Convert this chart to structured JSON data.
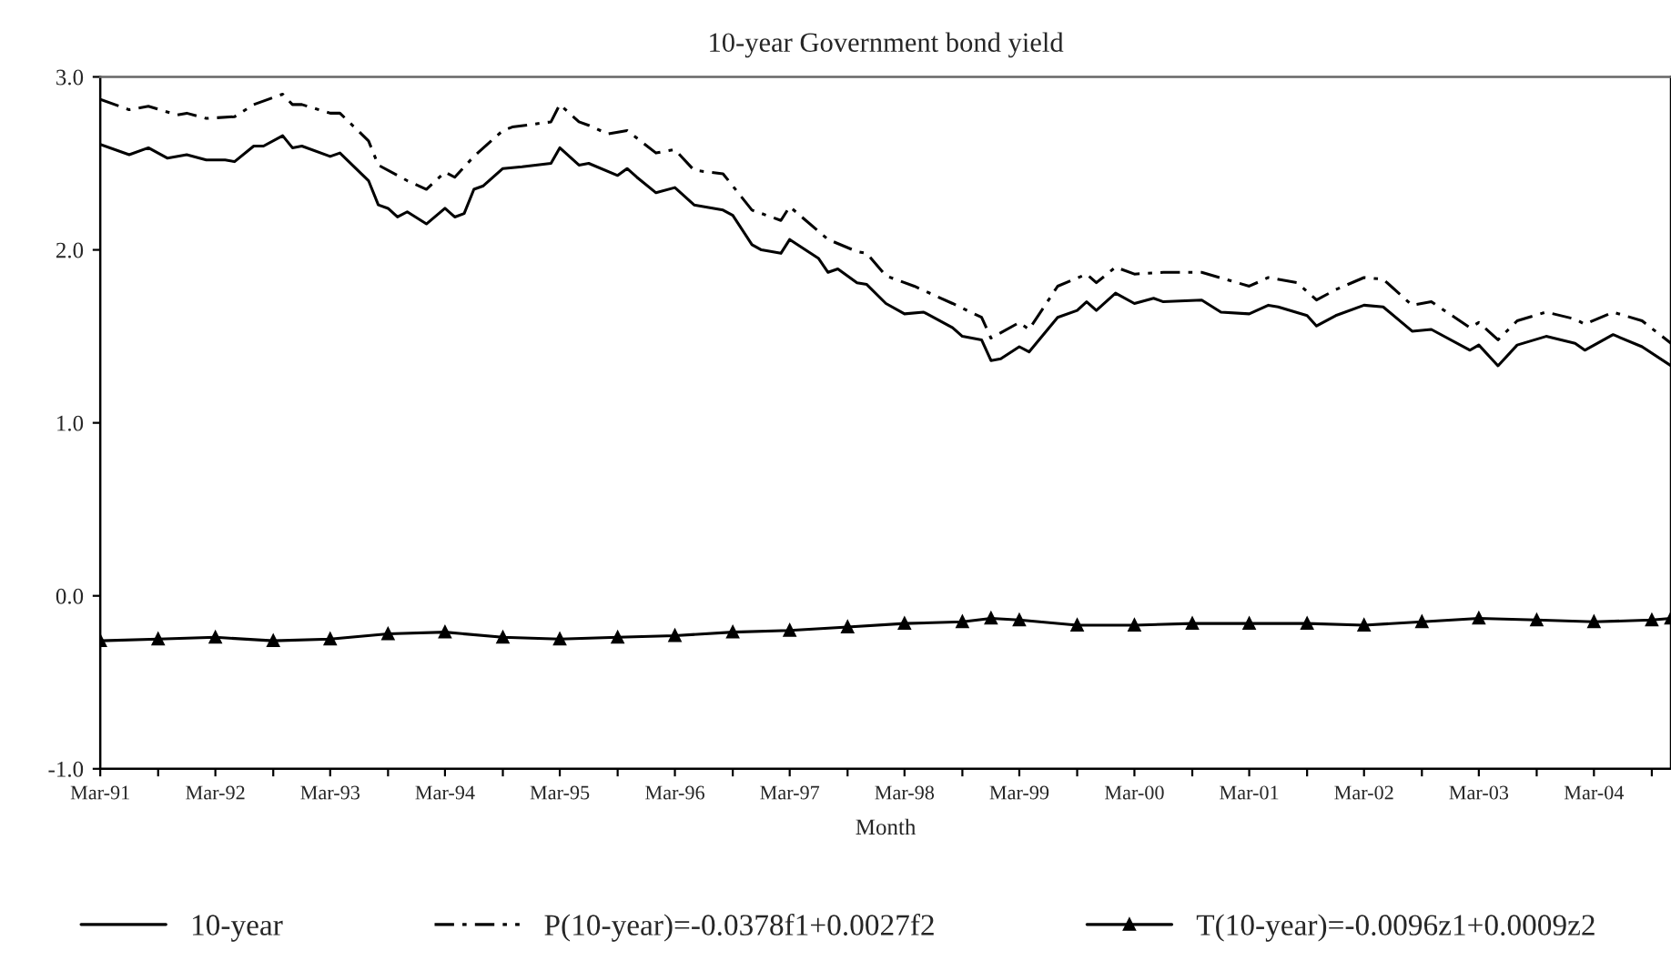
{
  "chart_data": {
    "type": "line",
    "title": "10-year Government bond yield",
    "xlabel": "Month",
    "xlim": [
      "1991-03",
      "2004-11"
    ],
    "ylim": [
      -1.0,
      3.0
    ],
    "yticks": [
      {
        "value": -1.0,
        "label": "-1.0"
      },
      {
        "value": 0.0,
        "label": "0.0"
      },
      {
        "value": 1.0,
        "label": "1.0"
      },
      {
        "value": 2.0,
        "label": "2.0"
      },
      {
        "value": 3.0,
        "label": "3.0"
      }
    ],
    "xticks": [
      {
        "value": "1991-03",
        "label": "Mar-91"
      },
      {
        "value": "1991-09",
        "label": null
      },
      {
        "value": "1992-03",
        "label": "Mar-92"
      },
      {
        "value": "1992-09",
        "label": null
      },
      {
        "value": "1993-03",
        "label": "Mar-93"
      },
      {
        "value": "1993-09",
        "label": null
      },
      {
        "value": "1994-03",
        "label": "Mar-94"
      },
      {
        "value": "1994-09",
        "label": null
      },
      {
        "value": "1995-03",
        "label": "Mar-95"
      },
      {
        "value": "1995-09",
        "label": null
      },
      {
        "value": "1996-03",
        "label": "Mar-96"
      },
      {
        "value": "1996-09",
        "label": null
      },
      {
        "value": "1997-03",
        "label": "Mar-97"
      },
      {
        "value": "1997-09",
        "label": null
      },
      {
        "value": "1998-03",
        "label": "Mar-98"
      },
      {
        "value": "1998-09",
        "label": null
      },
      {
        "value": "1999-03",
        "label": "Mar-99"
      },
      {
        "value": "1999-09",
        "label": null
      },
      {
        "value": "2000-03",
        "label": "Mar-00"
      },
      {
        "value": "2000-09",
        "label": null
      },
      {
        "value": "2001-03",
        "label": "Mar-01"
      },
      {
        "value": "2001-09",
        "label": null
      },
      {
        "value": "2002-03",
        "label": "Mar-02"
      },
      {
        "value": "2002-09",
        "label": null
      },
      {
        "value": "2003-03",
        "label": "Mar-03"
      },
      {
        "value": "2003-09",
        "label": null
      },
      {
        "value": "2004-03",
        "label": "Mar-04"
      },
      {
        "value": "2004-09",
        "label": null
      }
    ],
    "grid": false,
    "legend": "bottom",
    "series": [
      {
        "name": "10-year",
        "color": "#000000",
        "line_style": "solid",
        "marker": "none",
        "x": [
          "1991-03",
          "1991-06",
          "1991-08",
          "1991-10",
          "1991-12",
          "1992-02",
          "1992-04",
          "1992-05",
          "1992-07",
          "1992-08",
          "1992-10",
          "1992-11",
          "1992-12",
          "1993-03",
          "1993-04",
          "1993-07",
          "1993-08",
          "1993-09",
          "1993-10",
          "1993-11",
          "1994-01",
          "1994-03",
          "1994-04",
          "1994-05",
          "1994-06",
          "1994-07",
          "1994-09",
          "1994-11",
          "1995-02",
          "1995-03",
          "1995-05",
          "1995-06",
          "1995-09",
          "1995-10",
          "1995-11",
          "1996-01",
          "1996-03",
          "1996-05",
          "1996-08",
          "1996-09",
          "1996-11",
          "1996-12",
          "1997-02",
          "1997-03",
          "1997-06",
          "1997-07",
          "1997-08",
          "1997-10",
          "1997-11",
          "1998-01",
          "1998-03",
          "1998-05",
          "1998-08",
          "1998-09",
          "1998-11",
          "1998-12",
          "1999-01",
          "1999-03",
          "1999-04",
          "1999-07",
          "1999-09",
          "1999-10",
          "1999-11",
          "2000-01",
          "2000-03",
          "2000-05",
          "2000-06",
          "2000-10",
          "2000-12",
          "2001-03",
          "2001-05",
          "2001-06",
          "2001-09",
          "2001-10",
          "2001-12",
          "2002-03",
          "2002-05",
          "2002-08",
          "2002-10",
          "2003-02",
          "2003-03",
          "2003-05",
          "2003-07",
          "2003-10",
          "2004-01",
          "2004-02",
          "2004-05",
          "2004-08",
          "2004-11"
        ],
        "values": [
          2.61,
          2.55,
          2.59,
          2.53,
          2.55,
          2.52,
          2.52,
          2.51,
          2.6,
          2.6,
          2.66,
          2.59,
          2.6,
          2.54,
          2.56,
          2.4,
          2.26,
          2.24,
          2.19,
          2.22,
          2.15,
          2.24,
          2.19,
          2.21,
          2.35,
          2.37,
          2.47,
          2.48,
          2.5,
          2.59,
          2.49,
          2.5,
          2.43,
          2.47,
          2.42,
          2.33,
          2.36,
          2.26,
          2.23,
          2.2,
          2.03,
          2.0,
          1.98,
          2.06,
          1.95,
          1.87,
          1.89,
          1.81,
          1.8,
          1.69,
          1.63,
          1.64,
          1.55,
          1.5,
          1.48,
          1.36,
          1.37,
          1.44,
          1.41,
          1.61,
          1.65,
          1.7,
          1.65,
          1.75,
          1.69,
          1.72,
          1.7,
          1.71,
          1.64,
          1.63,
          1.68,
          1.67,
          1.62,
          1.56,
          1.62,
          1.68,
          1.67,
          1.53,
          1.54,
          1.42,
          1.45,
          1.33,
          1.45,
          1.5,
          1.46,
          1.42,
          1.51,
          1.44,
          1.33
        ]
      },
      {
        "name": "P(10-year)=-0.0378f1+0.0027f2",
        "color": "#000000",
        "line_style": "dashed",
        "marker": "none",
        "x": [
          "1991-03",
          "1991-06",
          "1991-08",
          "1991-11",
          "1991-12",
          "1992-02",
          "1992-05",
          "1992-07",
          "1992-10",
          "1992-11",
          "1992-12",
          "1993-03",
          "1993-04",
          "1993-07",
          "1993-08",
          "1993-11",
          "1994-01",
          "1994-03",
          "1994-04",
          "1994-06",
          "1994-09",
          "1994-10",
          "1995-02",
          "1995-03",
          "1995-05",
          "1995-06",
          "1995-08",
          "1995-10",
          "1996-01",
          "1996-03",
          "1996-05",
          "1996-08",
          "1996-11",
          "1997-02",
          "1997-03",
          "1997-07",
          "1997-10",
          "1997-11",
          "1998-01",
          "1998-04",
          "1998-08",
          "1998-11",
          "1998-12",
          "1999-03",
          "1999-04",
          "1999-07",
          "1999-10",
          "1999-11",
          "2000-01",
          "2000-03",
          "2000-06",
          "2000-10",
          "2001-03",
          "2001-05",
          "2001-08",
          "2001-10",
          "2001-12",
          "2002-03",
          "2002-05",
          "2002-08",
          "2002-10",
          "2003-02",
          "2003-03",
          "2003-05",
          "2003-07",
          "2003-10",
          "2004-01",
          "2004-02",
          "2004-05",
          "2004-08",
          "2004-11"
        ],
        "values": [
          2.87,
          2.81,
          2.83,
          2.78,
          2.79,
          2.76,
          2.77,
          2.84,
          2.9,
          2.84,
          2.84,
          2.79,
          2.79,
          2.63,
          2.49,
          2.4,
          2.35,
          2.45,
          2.42,
          2.54,
          2.69,
          2.71,
          2.74,
          2.84,
          2.74,
          2.72,
          2.67,
          2.69,
          2.56,
          2.58,
          2.46,
          2.44,
          2.23,
          2.17,
          2.25,
          2.06,
          1.99,
          1.98,
          1.85,
          1.79,
          1.69,
          1.61,
          1.49,
          1.58,
          1.54,
          1.79,
          1.86,
          1.81,
          1.9,
          1.86,
          1.87,
          1.87,
          1.79,
          1.84,
          1.81,
          1.71,
          1.77,
          1.84,
          1.83,
          1.68,
          1.7,
          1.55,
          1.58,
          1.48,
          1.59,
          1.64,
          1.6,
          1.57,
          1.64,
          1.59,
          1.46
        ]
      },
      {
        "name": "T(10-year)=-0.0096z1+0.0009z2",
        "color": "#000000",
        "line_style": "solid",
        "marker": "triangle",
        "x": [
          "1991-03",
          "1991-09",
          "1992-03",
          "1992-09",
          "1993-03",
          "1993-09",
          "1994-03",
          "1994-09",
          "1995-03",
          "1995-09",
          "1996-03",
          "1996-09",
          "1997-03",
          "1997-09",
          "1998-03",
          "1998-09",
          "1998-12",
          "1999-03",
          "1999-09",
          "2000-03",
          "2000-09",
          "2001-03",
          "2001-09",
          "2002-03",
          "2002-09",
          "2003-03",
          "2003-09",
          "2004-03",
          "2004-09",
          "2004-11"
        ],
        "values": [
          -0.26,
          -0.25,
          -0.24,
          -0.26,
          -0.25,
          -0.22,
          -0.21,
          -0.24,
          -0.25,
          -0.24,
          -0.23,
          -0.21,
          -0.2,
          -0.18,
          -0.16,
          -0.15,
          -0.13,
          -0.14,
          -0.17,
          -0.17,
          -0.16,
          -0.16,
          -0.16,
          -0.17,
          -0.15,
          -0.13,
          -0.14,
          -0.15,
          -0.14,
          -0.13
        ]
      }
    ]
  }
}
